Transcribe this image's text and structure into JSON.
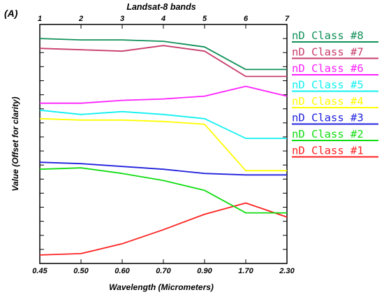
{
  "panel_label": "(A)",
  "chart_data": {
    "type": "line",
    "title": "Landsat-8 bands",
    "xlabel": "Wavelength (Micrometers)",
    "ylabel": "Value (Offset for clarity)",
    "x_bottom_ticks": [
      "0.45",
      "0.50",
      "0.60",
      "0.70",
      "0.90",
      "1.70",
      "2.30"
    ],
    "x_top_ticks": [
      "1",
      "2",
      "3",
      "4",
      "5",
      "6",
      "7"
    ],
    "categories": [
      "1",
      "2",
      "3",
      "4",
      "5",
      "6",
      "7"
    ],
    "ylim": [
      0,
      17
    ],
    "y_ticks_count": 17,
    "grid": false,
    "legend_position": "right",
    "series": [
      {
        "name": "nD Class #1",
        "color": "#ff2020",
        "values": [
          0.6,
          0.7,
          1.4,
          2.4,
          3.5,
          4.3,
          3.3
        ]
      },
      {
        "name": "nD Class #2",
        "color": "#10dd10",
        "values": [
          6.7,
          6.8,
          6.4,
          5.9,
          5.2,
          3.6,
          3.6
        ]
      },
      {
        "name": "nD Class #3",
        "color": "#2020dd",
        "values": [
          7.2,
          7.1,
          6.9,
          6.7,
          6.4,
          6.3,
          6.3
        ]
      },
      {
        "name": "nD Class #4",
        "color": "#ffff00",
        "values": [
          10.3,
          10.2,
          10.2,
          10.1,
          9.9,
          6.6,
          6.6
        ]
      },
      {
        "name": "nD Class #5",
        "color": "#10f0f0",
        "values": [
          10.9,
          10.6,
          10.8,
          10.6,
          10.3,
          8.9,
          8.9
        ]
      },
      {
        "name": "nD Class #6",
        "color": "#ff20ff",
        "values": [
          11.4,
          11.4,
          11.6,
          11.7,
          11.9,
          12.6,
          11.9
        ]
      },
      {
        "name": "nD Class #7",
        "color": "#c83c6c",
        "values": [
          15.3,
          15.2,
          15.1,
          15.5,
          15.1,
          13.3,
          13.3
        ]
      },
      {
        "name": "nD Class #8",
        "color": "#109058",
        "values": [
          16.0,
          15.9,
          15.9,
          15.8,
          15.4,
          13.8,
          13.8
        ]
      }
    ]
  }
}
